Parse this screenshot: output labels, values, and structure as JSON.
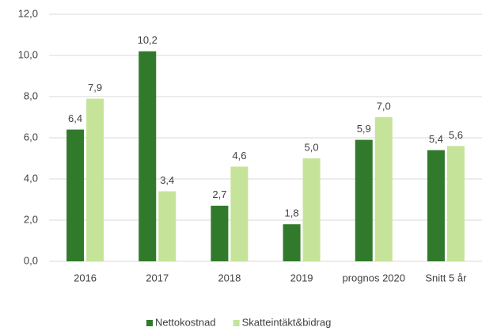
{
  "chart_data": {
    "type": "bar",
    "categories": [
      "2016",
      "2017",
      "2018",
      "2019",
      "prognos 2020",
      "Snitt 5 år"
    ],
    "series": [
      {
        "name": "Nettokostnad",
        "color": "#317a2b",
        "values": [
          6.4,
          10.2,
          2.7,
          1.8,
          5.9,
          5.4
        ],
        "value_labels": [
          "6,4",
          "10,2",
          "2,7",
          "1,8",
          "5,9",
          "5,4"
        ]
      },
      {
        "name": "Skatteintäkt&bidrag",
        "color": "#c5e49a",
        "values": [
          7.9,
          3.4,
          4.6,
          5.0,
          7.0,
          5.6
        ],
        "value_labels": [
          "7,9",
          "3,4",
          "4,6",
          "5,0",
          "7,0",
          "5,6"
        ]
      }
    ],
    "ylim": [
      0,
      12
    ],
    "yticks": [
      {
        "value": 0,
        "label": "0,0"
      },
      {
        "value": 2,
        "label": "2,0"
      },
      {
        "value": 4,
        "label": "4,0"
      },
      {
        "value": 6,
        "label": "6,0"
      },
      {
        "value": 8,
        "label": "8,0"
      },
      {
        "value": 10,
        "label": "10,0"
      },
      {
        "value": 12,
        "label": "12,0"
      }
    ],
    "grid": true,
    "legend": "bottom"
  }
}
